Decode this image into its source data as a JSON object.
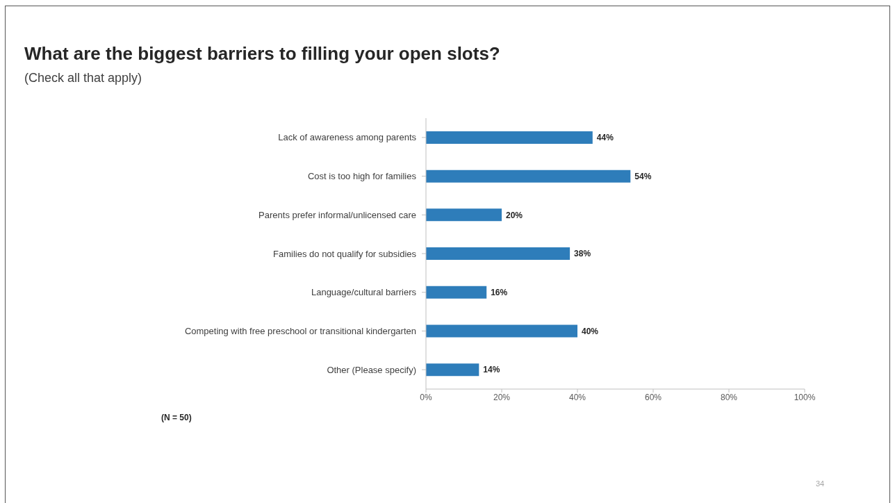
{
  "chart_data": {
    "type": "bar",
    "orientation": "horizontal",
    "title": "What are the biggest barriers to filling your open slots?",
    "subtitle": "(Check all that apply)",
    "categories": [
      "Lack of awareness among parents",
      "Cost is too high for families",
      "Parents prefer informal/unlicensed care",
      "Families do not qualify for subsidies",
      "Language/cultural barriers",
      "Competing with free preschool or transitional kindergarten",
      "Other (Please specify)"
    ],
    "values": [
      44,
      54,
      20,
      38,
      16,
      40,
      14
    ],
    "value_labels": [
      "44%",
      "54%",
      "20%",
      "38%",
      "16%",
      "40%",
      "14%"
    ],
    "color": "#2e7dba",
    "xlim": [
      0,
      100
    ],
    "xticks": [
      {
        "value": 0,
        "label": "0%"
      },
      {
        "value": 20,
        "label": "20%"
      },
      {
        "value": 40,
        "label": "40%"
      },
      {
        "value": 60,
        "label": "60%"
      },
      {
        "value": 80,
        "label": "80%"
      },
      {
        "value": 100,
        "label": "100%"
      }
    ],
    "annotations": [
      "(N = 50)",
      "34"
    ]
  }
}
